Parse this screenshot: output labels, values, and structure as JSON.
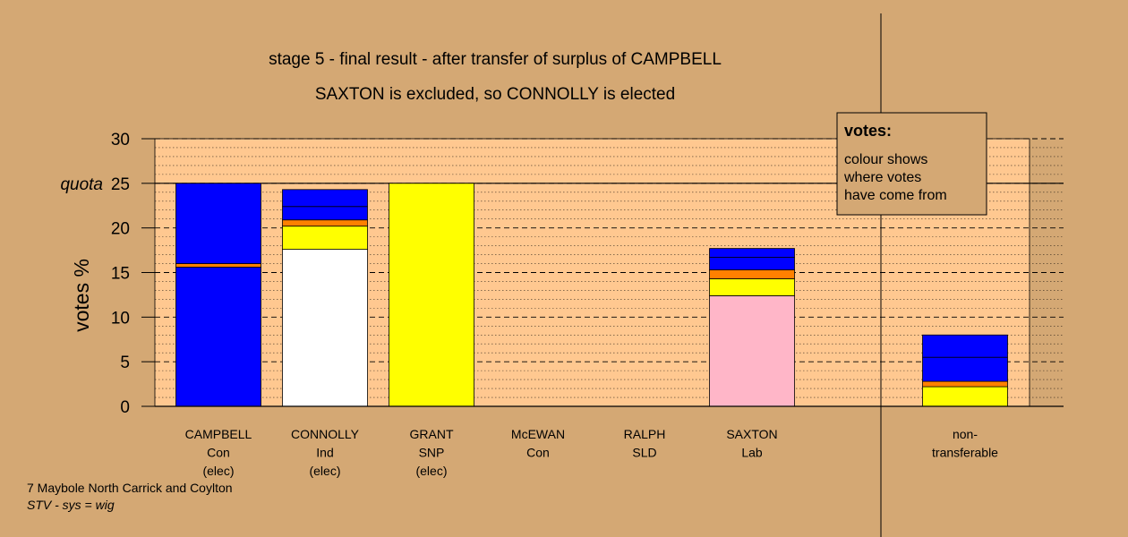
{
  "chart_data": {
    "type": "bar",
    "stacked": true,
    "title": "stage 5 - final result - after transfer of surplus of CAMPBELL",
    "subtitle": "SAXTON is excluded, so CONNOLLY is elected",
    "ylabel": "votes %",
    "ylim": [
      0,
      30
    ],
    "yticks": [
      "0",
      "5",
      "10",
      "15",
      "20",
      "25",
      "30"
    ],
    "quota": 25,
    "quota_label": "quota",
    "grid": true,
    "legend": {
      "title": "votes:",
      "lines": [
        "colour shows",
        "where votes",
        "have come from"
      ],
      "position": "top-right"
    },
    "categories": [
      {
        "lines": [
          "CAMPBELL",
          "Con",
          "(elec)"
        ]
      },
      {
        "lines": [
          "CONNOLLY",
          "Ind",
          "(elec)"
        ]
      },
      {
        "lines": [
          "GRANT",
          "SNP",
          "(elec)"
        ]
      },
      {
        "lines": [
          "McEWAN",
          "Con"
        ]
      },
      {
        "lines": [
          "RALPH",
          "SLD"
        ]
      },
      {
        "lines": [
          "SAXTON",
          "Lab"
        ]
      },
      {
        "lines": [
          "non-",
          "transferable"
        ]
      }
    ],
    "stacks": [
      [
        {
          "value": 15.6,
          "color": "#0000ff"
        },
        {
          "value": 0.4,
          "color": "#ff8000"
        },
        {
          "value": 9.0,
          "color": "#0000ff"
        }
      ],
      [
        {
          "value": 17.6,
          "color": "#ffffff"
        },
        {
          "value": 2.6,
          "color": "#ffff00"
        },
        {
          "value": 0.7,
          "color": "#ff8000"
        },
        {
          "value": 1.5,
          "color": "#0000ff"
        },
        {
          "value": 1.9,
          "color": "#0000ff"
        }
      ],
      [
        {
          "value": 25.0,
          "color": "#ffff00"
        }
      ],
      [],
      [],
      [
        {
          "value": 12.4,
          "color": "#ffb6c8"
        },
        {
          "value": 1.9,
          "color": "#ffff00"
        },
        {
          "value": 1.0,
          "color": "#ff8000"
        },
        {
          "value": 1.4,
          "color": "#0000ff"
        },
        {
          "value": 1.0,
          "color": "#0000ff"
        }
      ],
      [
        {
          "value": 2.2,
          "color": "#ffff00"
        },
        {
          "value": 0.6,
          "color": "#ff8000"
        },
        {
          "value": 2.7,
          "color": "#0000ff"
        },
        {
          "value": 2.5,
          "color": "#0000ff"
        }
      ]
    ],
    "colors": {
      "background": "#d4a874",
      "plot_area": "#ffc890"
    }
  },
  "footer": {
    "line1": "7 Maybole North Carrick and Coylton",
    "line2": "STV - sys = wig"
  }
}
